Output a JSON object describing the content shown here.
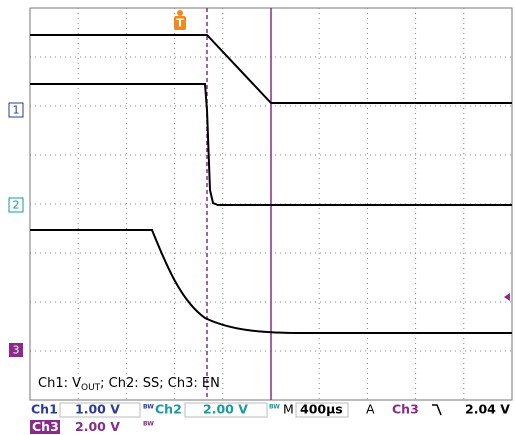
{
  "annotation": {
    "prefix": "Ch1: V",
    "sub": "OUT",
    "suffix": "; Ch2: SS; Ch3: EN"
  },
  "markers": {
    "trigger": "T",
    "ch1": "1",
    "ch2": "2",
    "ch3": "3"
  },
  "status": {
    "row1": {
      "ch1": "Ch1",
      "ch1_scale": "1.00 V",
      "bw1": "BW",
      "ch2": "Ch2",
      "ch2_scale": "2.00 V",
      "bw2": "BW",
      "m": "M",
      "timebase": "400µs",
      "a": "A",
      "trig_source": "Ch3",
      "trig_level": "2.04 V"
    },
    "row2": {
      "ch3": "Ch3",
      "ch3_scale": "2.00 V",
      "bw3": "BW"
    }
  }
}
